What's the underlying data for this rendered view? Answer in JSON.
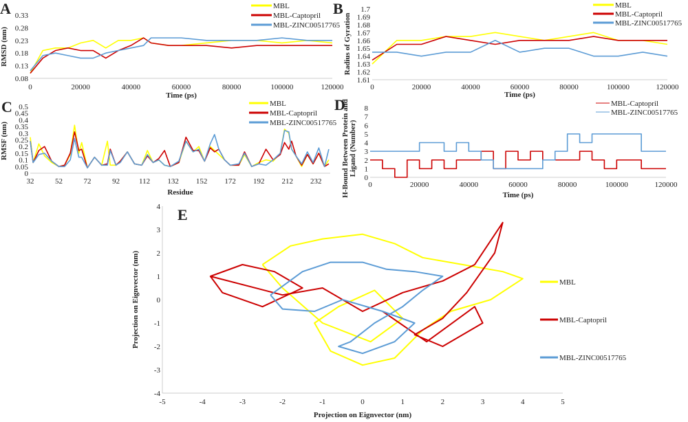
{
  "colors": {
    "MBL": "#ffff00",
    "MBL-Captopril": "#cc0000",
    "MBL-ZINC00517765": "#5b9bd5"
  },
  "chart_data": [
    {
      "panel": "A",
      "type": "line",
      "xlabel": "Time (ps)",
      "ylabel": "RMSD (nm)",
      "xlim": [
        0,
        120000
      ],
      "ylim": [
        0.08,
        0.33
      ],
      "xticks": [
        "0",
        "20000",
        "40000",
        "60000",
        "80000",
        "100000",
        "120000"
      ],
      "yticks": [
        "0.08",
        "0.13",
        "0.18",
        "0.23",
        "0.28",
        "0.33"
      ],
      "legend": "top-right",
      "x": [
        0,
        5000,
        10000,
        15000,
        20000,
        25000,
        30000,
        35000,
        40000,
        45000,
        48000,
        55000,
        60000,
        70000,
        80000,
        90000,
        100000,
        110000,
        120000
      ],
      "series": [
        {
          "name": "MBL",
          "values": [
            0.1,
            0.19,
            0.2,
            0.2,
            0.22,
            0.23,
            0.2,
            0.23,
            0.23,
            0.24,
            0.22,
            0.21,
            0.21,
            0.22,
            0.23,
            0.23,
            0.22,
            0.23,
            0.22
          ]
        },
        {
          "name": "MBL-Captopril",
          "values": [
            0.1,
            0.16,
            0.19,
            0.2,
            0.19,
            0.19,
            0.16,
            0.19,
            0.21,
            0.24,
            0.22,
            0.21,
            0.21,
            0.21,
            0.2,
            0.21,
            0.21,
            0.21,
            0.21
          ]
        },
        {
          "name": "MBL-ZINC00517765",
          "values": [
            0.11,
            0.17,
            0.18,
            0.17,
            0.16,
            0.16,
            0.18,
            0.19,
            0.2,
            0.21,
            0.24,
            0.24,
            0.24,
            0.23,
            0.23,
            0.23,
            0.24,
            0.23,
            0.23
          ]
        }
      ]
    },
    {
      "panel": "B",
      "type": "line",
      "xlabel": "Time (ps)",
      "ylabel": "Radius of Gyration",
      "xlim": [
        0,
        120000
      ],
      "ylim": [
        1.61,
        1.7
      ],
      "xticks": [
        "0",
        "20000",
        "40000",
        "60000",
        "80000",
        "100000",
        "120000"
      ],
      "yticks": [
        "1.61",
        "1.62",
        "1.63",
        "1.64",
        "1.65",
        "1.66",
        "1.67",
        "1.68",
        "1.69",
        "1.7"
      ],
      "legend": "top-right",
      "x": [
        0,
        10000,
        20000,
        30000,
        40000,
        50000,
        60000,
        70000,
        80000,
        90000,
        100000,
        110000,
        120000
      ],
      "series": [
        {
          "name": "MBL",
          "values": [
            1.63,
            1.66,
            1.66,
            1.665,
            1.665,
            1.67,
            1.665,
            1.66,
            1.665,
            1.67,
            1.66,
            1.66,
            1.655
          ]
        },
        {
          "name": "MBL-Captopril",
          "values": [
            1.635,
            1.655,
            1.655,
            1.665,
            1.66,
            1.655,
            1.66,
            1.66,
            1.66,
            1.665,
            1.66,
            1.66,
            1.66
          ]
        },
        {
          "name": "MBL-ZINC00517765",
          "values": [
            1.645,
            1.645,
            1.64,
            1.645,
            1.645,
            1.66,
            1.645,
            1.65,
            1.65,
            1.64,
            1.64,
            1.645,
            1.64
          ]
        }
      ]
    },
    {
      "panel": "C",
      "type": "line",
      "xlabel": "Residue",
      "ylabel": "RMSF (nm)",
      "xlim": [
        32,
        242
      ],
      "ylim": [
        0,
        0.5
      ],
      "xticks": [
        "32",
        "52",
        "72",
        "92",
        "112",
        "132",
        "152",
        "172",
        "192",
        "212",
        "232"
      ],
      "yticks": [
        "0",
        "0.05",
        "0.1",
        "0.15",
        "0.2",
        "0.25",
        "0.3",
        "0.35",
        "0.4",
        "0.45",
        "0.5"
      ],
      "legend": "top-right",
      "x": [
        32,
        34,
        38,
        42,
        47,
        52,
        56,
        60,
        63,
        66,
        68,
        72,
        77,
        82,
        86,
        88,
        92,
        95,
        100,
        105,
        110,
        114,
        118,
        122,
        126,
        130,
        136,
        141,
        146,
        150,
        154,
        158,
        161,
        164,
        168,
        172,
        178,
        182,
        187,
        192,
        197,
        202,
        207,
        210,
        213,
        215,
        218,
        222,
        226,
        230,
        234,
        238,
        241
      ],
      "series": [
        {
          "name": "MBL",
          "values": [
            0.27,
            0.08,
            0.22,
            0.13,
            0.08,
            0.05,
            0.06,
            0.14,
            0.36,
            0.15,
            0.23,
            0.04,
            0.12,
            0.06,
            0.24,
            0.06,
            0.06,
            0.09,
            0.16,
            0.07,
            0.06,
            0.17,
            0.08,
            0.1,
            0.06,
            0.05,
            0.08,
            0.24,
            0.16,
            0.2,
            0.09,
            0.2,
            0.17,
            0.14,
            0.1,
            0.06,
            0.06,
            0.14,
            0.05,
            0.08,
            0.1,
            0.09,
            0.15,
            0.33,
            0.3,
            0.18,
            0.13,
            0.05,
            0.14,
            0.07,
            0.15,
            0.05,
            0.1
          ]
        },
        {
          "name": "MBL-Captopril",
          "values": [
            0.24,
            0.08,
            0.17,
            0.2,
            0.09,
            0.05,
            0.06,
            0.15,
            0.31,
            0.17,
            0.18,
            0.04,
            0.12,
            0.06,
            0.07,
            0.18,
            0.06,
            0.09,
            0.16,
            0.07,
            0.06,
            0.13,
            0.08,
            0.11,
            0.17,
            0.05,
            0.08,
            0.27,
            0.17,
            0.17,
            0.09,
            0.19,
            0.16,
            0.18,
            0.1,
            0.06,
            0.06,
            0.16,
            0.05,
            0.07,
            0.18,
            0.1,
            0.14,
            0.23,
            0.18,
            0.24,
            0.13,
            0.06,
            0.14,
            0.07,
            0.15,
            0.05,
            0.07
          ]
        },
        {
          "name": "MBL-ZINC00517765",
          "values": [
            0.24,
            0.08,
            0.14,
            0.15,
            0.09,
            0.05,
            0.05,
            0.1,
            0.26,
            0.12,
            0.12,
            0.04,
            0.12,
            0.06,
            0.06,
            0.17,
            0.06,
            0.08,
            0.16,
            0.07,
            0.06,
            0.14,
            0.08,
            0.1,
            0.06,
            0.05,
            0.09,
            0.24,
            0.16,
            0.18,
            0.09,
            0.22,
            0.29,
            0.18,
            0.1,
            0.06,
            0.07,
            0.15,
            0.05,
            0.07,
            0.06,
            0.1,
            0.15,
            0.32,
            0.31,
            0.18,
            0.13,
            0.07,
            0.16,
            0.08,
            0.19,
            0.05,
            0.18
          ]
        }
      ]
    },
    {
      "panel": "D",
      "type": "line",
      "xlabel": "Time (ps)",
      "ylabel": "H-Bound Between Protein and Ligand (Number)",
      "xlim": [
        0,
        120000
      ],
      "ylim": [
        0,
        8
      ],
      "xticks": [
        "0",
        "20000",
        "40000",
        "60000",
        "80000",
        "100000",
        "120000"
      ],
      "yticks": [
        "0",
        "1",
        "2",
        "3",
        "4",
        "5",
        "6",
        "7",
        "8"
      ],
      "legend": "top-right",
      "x": [
        0,
        5000,
        10000,
        15000,
        20000,
        25000,
        30000,
        35000,
        40000,
        45000,
        50000,
        55000,
        60000,
        65000,
        70000,
        75000,
        80000,
        85000,
        90000,
        95000,
        100000,
        105000,
        110000,
        115000,
        120000
      ],
      "series": [
        {
          "name": "MBL-Captopril",
          "values": [
            2,
            1,
            0,
            2,
            1,
            2,
            1,
            2,
            2,
            3,
            1,
            3,
            2,
            3,
            2,
            2,
            2,
            3,
            2,
            1,
            2,
            2,
            1,
            1,
            1
          ]
        },
        {
          "name": "MBL-ZINC00517765",
          "values": [
            3,
            3,
            3,
            3,
            4,
            4,
            3,
            4,
            3,
            2,
            1,
            1,
            1,
            1,
            2,
            3,
            5,
            4,
            5,
            5,
            5,
            5,
            3,
            3,
            3
          ]
        }
      ]
    },
    {
      "panel": "E",
      "type": "line",
      "xlabel": "Projection on Eignvector (nm)",
      "ylabel": "Projection on Eignvector (nm)",
      "xlim": [
        -5,
        5
      ],
      "ylim": [
        -4,
        4
      ],
      "xticks": [
        "-5",
        "-4",
        "-3",
        "-2",
        "-1",
        "0",
        "1",
        "2",
        "3",
        "4",
        "5"
      ],
      "yticks": [
        "-4",
        "-3",
        "-2",
        "-1",
        "0",
        "1",
        "2",
        "3",
        "4"
      ],
      "legend": "right",
      "series": [
        {
          "name": "MBL",
          "x": [
            -2.5,
            -1.8,
            -1,
            0,
            0.8,
            1.5,
            2.5,
            3.5,
            4,
            3.2,
            2.2,
            1.5,
            0.8,
            0,
            -0.8,
            -1.2,
            -0.6,
            0.3,
            1,
            0.2,
            -1,
            -2,
            -2.5
          ],
          "y": [
            1.5,
            2.3,
            2.6,
            2.8,
            2.4,
            1.8,
            1.5,
            1.2,
            0.9,
            0,
            -0.5,
            -1.3,
            -2.5,
            -2.8,
            -2.2,
            -1,
            -0.3,
            0.4,
            -0.8,
            -1.8,
            -1,
            0.5,
            1.5
          ]
        },
        {
          "name": "MBL-Captopril",
          "x": [
            -3.8,
            -3,
            -2.2,
            -1.5,
            -2.5,
            -3.5,
            -3.8,
            -2,
            -1,
            0,
            1,
            2,
            2.8,
            3.5,
            3.3,
            2.6,
            2,
            1.3,
            2,
            3,
            2.8,
            1.6,
            0.5
          ],
          "y": [
            1,
            1.5,
            1.2,
            0.5,
            -0.3,
            0.3,
            1,
            0.2,
            0.5,
            -0.5,
            0.3,
            0.8,
            1.5,
            3.3,
            2,
            0.3,
            -0.8,
            -1.5,
            -2,
            -1,
            -0.3,
            -1.8,
            -0.5
          ]
        },
        {
          "name": "MBL-ZINC00517765",
          "x": [
            -2.3,
            -1.5,
            -0.8,
            0,
            0.6,
            1.3,
            2,
            1.5,
            1,
            0.3,
            -0.3,
            -0.6,
            0,
            0.8,
            1.3,
            0.5,
            -0.5,
            -1.2,
            -2,
            -2.3
          ],
          "y": [
            0.2,
            1.2,
            1.6,
            1.6,
            1.3,
            1.2,
            1,
            0.4,
            -0.3,
            -1,
            -1.8,
            -2,
            -2.3,
            -1.8,
            -1,
            -0.5,
            0,
            -0.5,
            -0.4,
            0.2
          ]
        }
      ]
    }
  ],
  "panel_labels": [
    "A",
    "B",
    "C",
    "D",
    "E"
  ]
}
